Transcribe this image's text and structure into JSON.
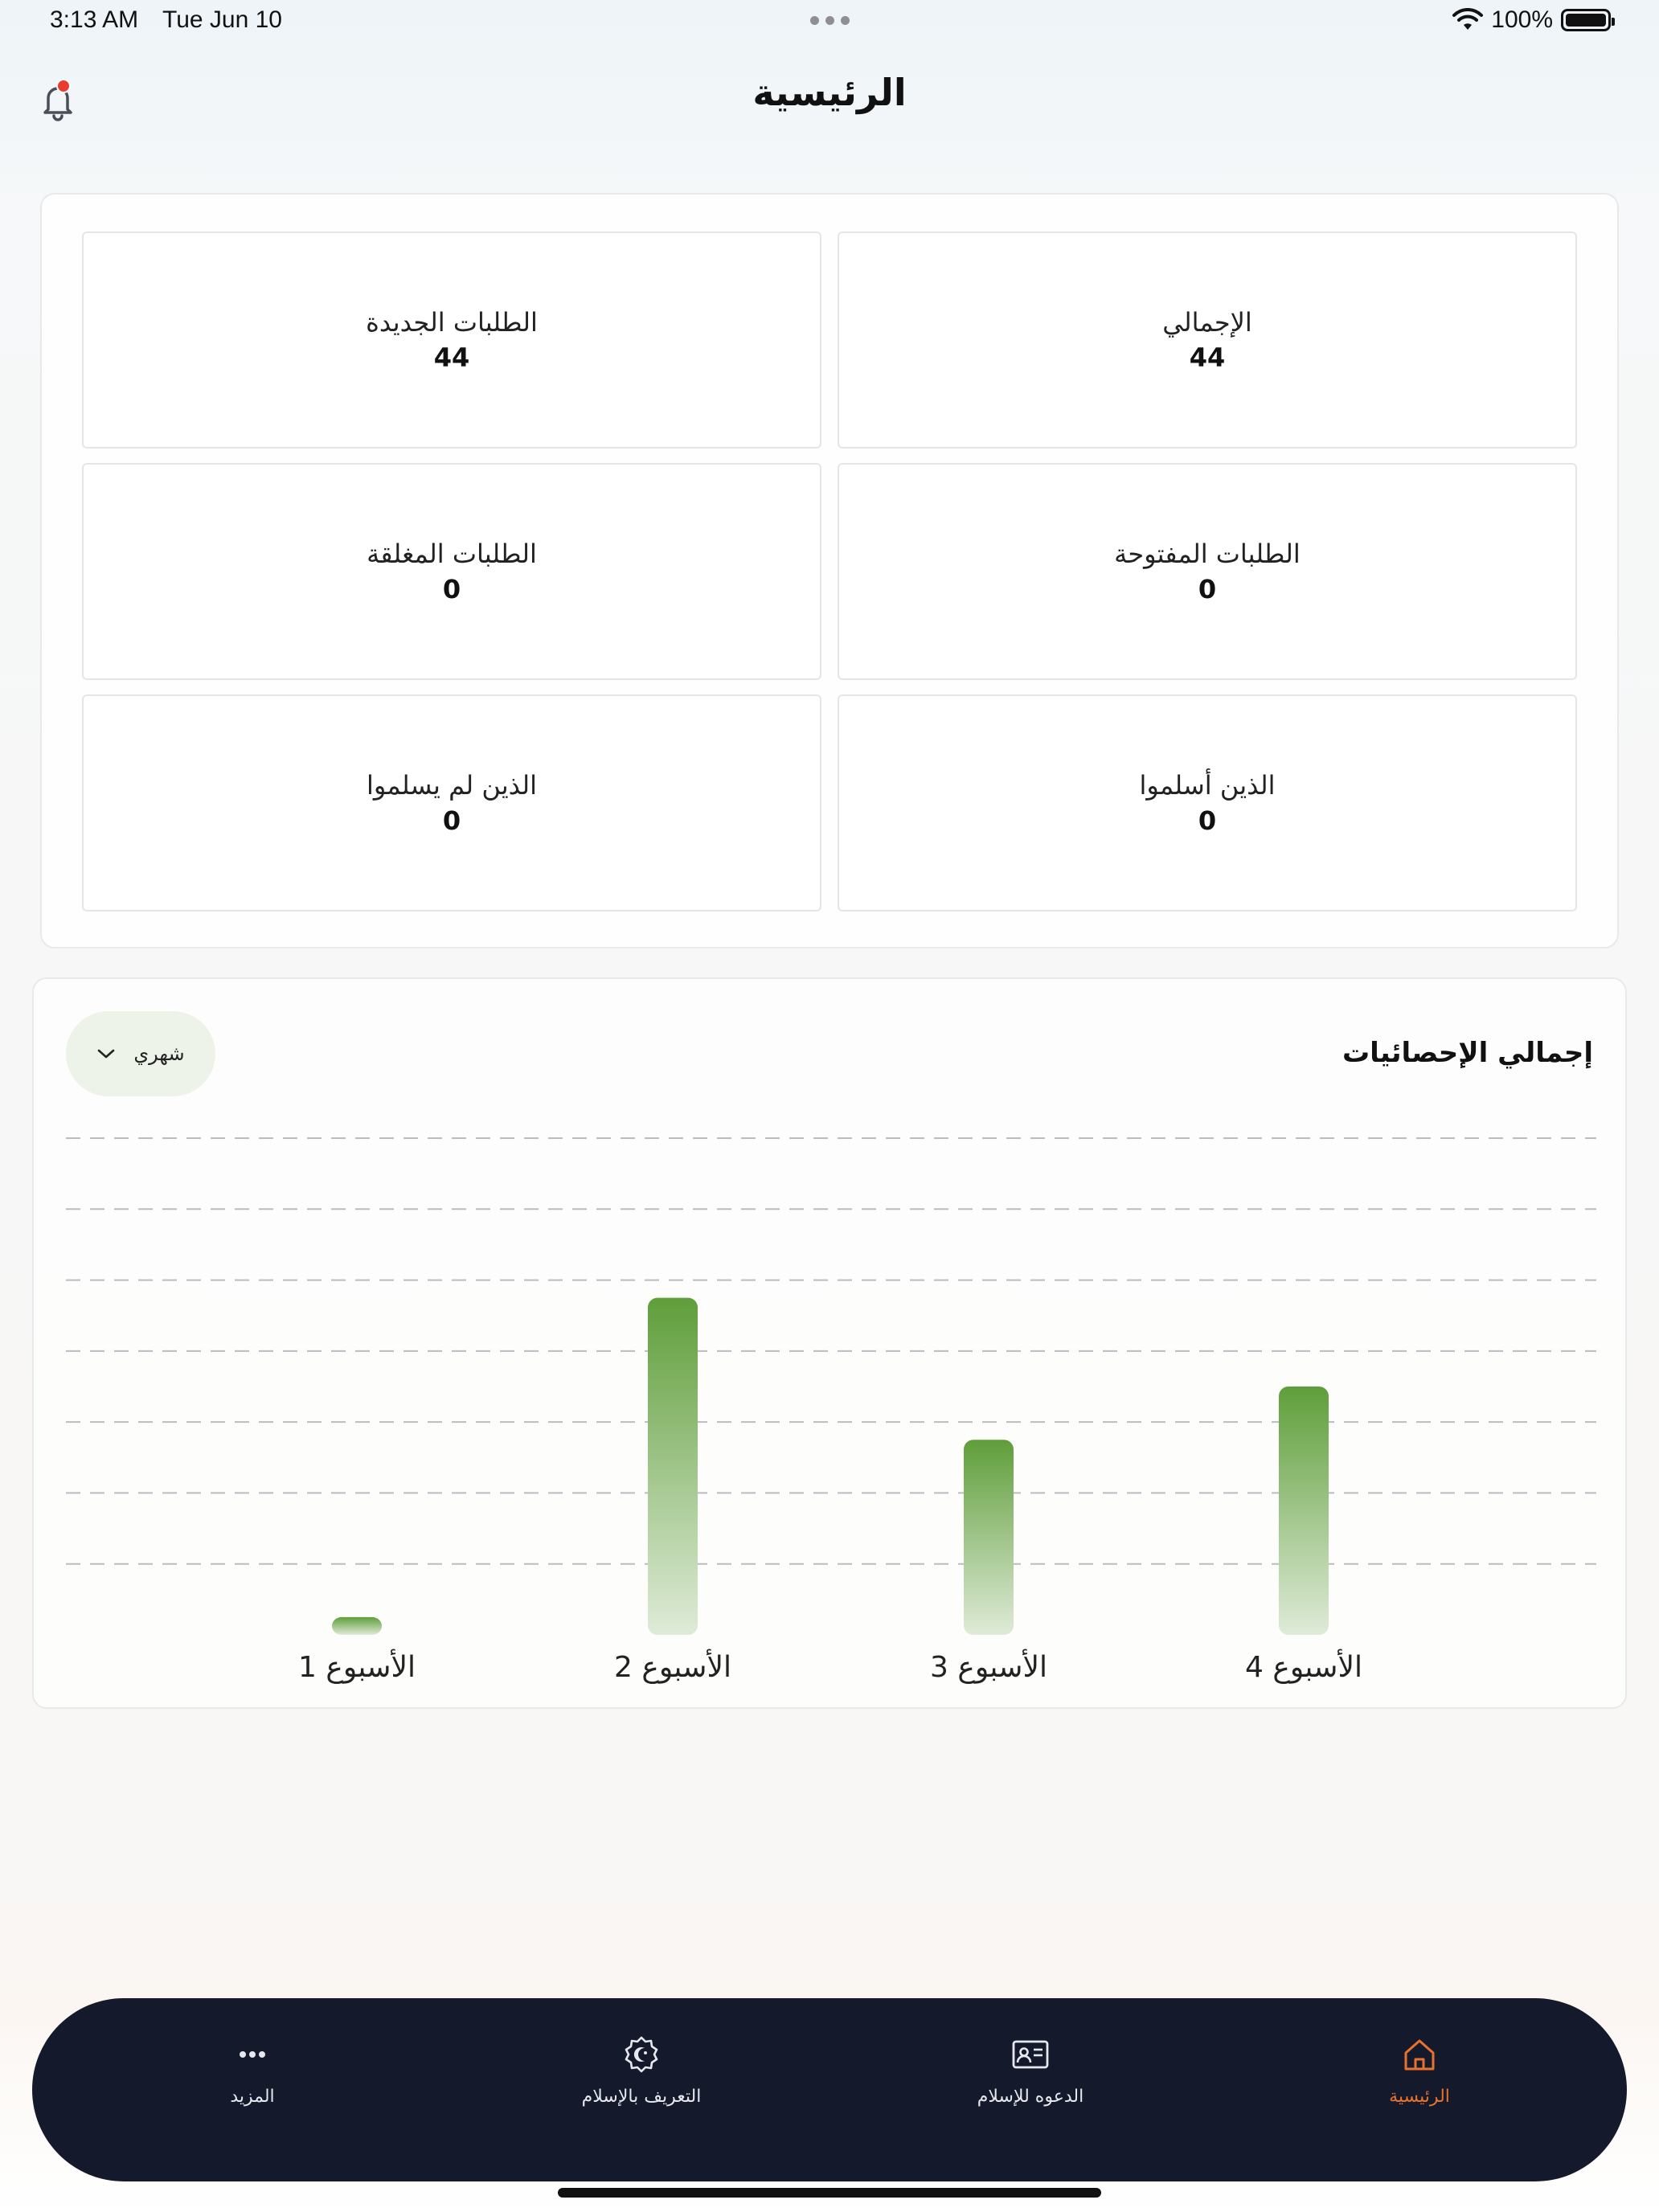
{
  "status_bar": {
    "time": "3:13 AM",
    "date": "Tue Jun 10",
    "battery": "100%"
  },
  "header": {
    "title": "الرئيسية",
    "notification_icon": "bell-icon",
    "has_unread": true
  },
  "stats": [
    {
      "label": "الطلبات الجديدة",
      "value": "44"
    },
    {
      "label": "الإجمالي",
      "value": "44"
    },
    {
      "label": "الطلبات المغلقة",
      "value": "0"
    },
    {
      "label": "الطلبات المفتوحة",
      "value": "0"
    },
    {
      "label": "الذين لم يسلموا",
      "value": "0"
    },
    {
      "label": "الذين أسلموا",
      "value": "0"
    }
  ],
  "chart_section": {
    "title": "إجمالي الإحصائيات",
    "period_select": {
      "selected": "شهري"
    }
  },
  "chart_data": {
    "type": "bar",
    "categories": [
      "الأسبوع 1",
      "الأسبوع 2",
      "الأسبوع 3",
      "الأسبوع 4"
    ],
    "values": [
      1,
      19,
      11,
      14
    ],
    "ylim": [
      0,
      28
    ],
    "gridlines": 7,
    "grid": true,
    "grid_style": "dashed",
    "bar_color_top": "#5f9e3a",
    "bar_color_bottom": "#dfebd8"
  },
  "bottom_nav": {
    "items": [
      {
        "label": "المزيد",
        "icon": "more-dots-icon",
        "active": false
      },
      {
        "label": "التعريف بالإسلام",
        "icon": "islam-badge-icon",
        "active": false
      },
      {
        "label": "الدعوه للإسلام",
        "icon": "id-card-icon",
        "active": false
      },
      {
        "label": "الرئيسية",
        "icon": "home-icon",
        "active": true
      }
    ],
    "active_color": "#e8722c"
  }
}
